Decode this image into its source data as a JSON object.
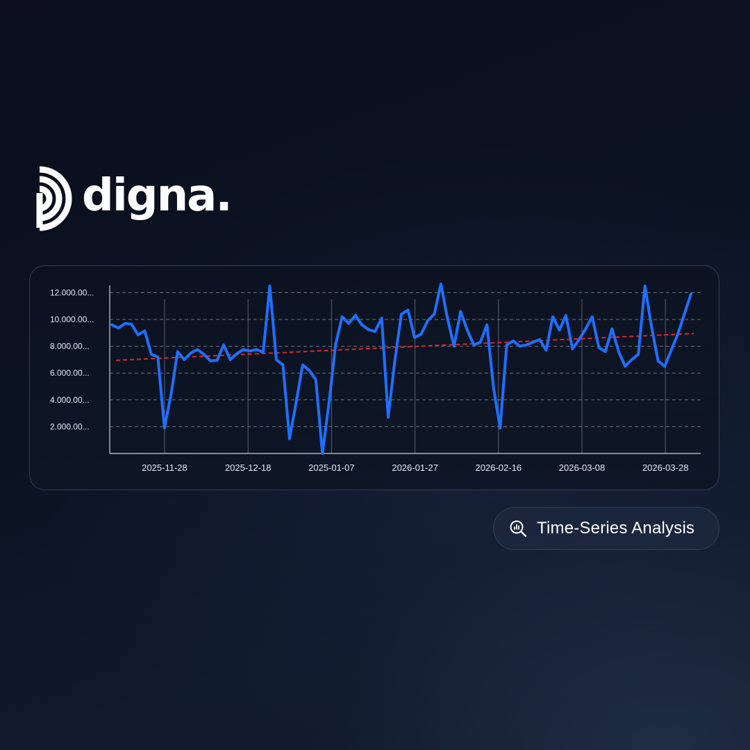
{
  "brand": {
    "name": "digna."
  },
  "badge": {
    "label": "Time-Series Analysis",
    "icon": "magnifier-chart-icon"
  },
  "colors": {
    "series": "#1f6fff",
    "trend": "#e0262a",
    "grid": "#8a95a8",
    "text": "#ffffff"
  },
  "chart_data": {
    "type": "line",
    "title": "",
    "xlabel": "",
    "ylabel": "",
    "ylim": [
      0,
      12500
    ],
    "grid": true,
    "y_ticks": [
      12000,
      10000,
      8000,
      6000,
      4000,
      2000
    ],
    "y_tick_labels": [
      "12.000.00...",
      "10.000.00...",
      "8.000.00...",
      "6.000.00...",
      "4.000.00...",
      "2.000.00..."
    ],
    "x_ticks": [
      "2025-11-28",
      "2025-12-18",
      "2025-01-07",
      "2026-01-27",
      "2026-02-16",
      "2026-03-08",
      "2026-03-28"
    ],
    "series": [
      {
        "values": [
          9600,
          9350,
          9700,
          9650,
          8850,
          9150,
          7400,
          7200,
          1900,
          4400,
          7600,
          7000,
          7500,
          7750,
          7400,
          6900,
          6950,
          8100,
          7000,
          7450,
          7750,
          7650,
          7750,
          7550,
          12500,
          7000,
          6600,
          1100,
          3800,
          6600,
          6200,
          5500,
          0,
          3800,
          8100,
          10200,
          9700,
          10300,
          9600,
          9250,
          9100,
          10100,
          2700,
          6900,
          10400,
          10700,
          8650,
          8900,
          9900,
          10400,
          12650,
          10100,
          8000,
          10600,
          9200,
          8100,
          8300,
          9600,
          4900,
          1900,
          8100,
          8400,
          8000,
          8100,
          8300,
          8500,
          7700,
          10200,
          9200,
          10300,
          7800,
          8500,
          9300,
          10200,
          7900,
          7600,
          9300,
          7600,
          6500,
          7000,
          7400,
          12500,
          9500,
          6900,
          6500,
          7700,
          8900,
          10400,
          11900
        ]
      }
    ],
    "trend": {
      "start": 6950,
      "end": 8950
    }
  }
}
